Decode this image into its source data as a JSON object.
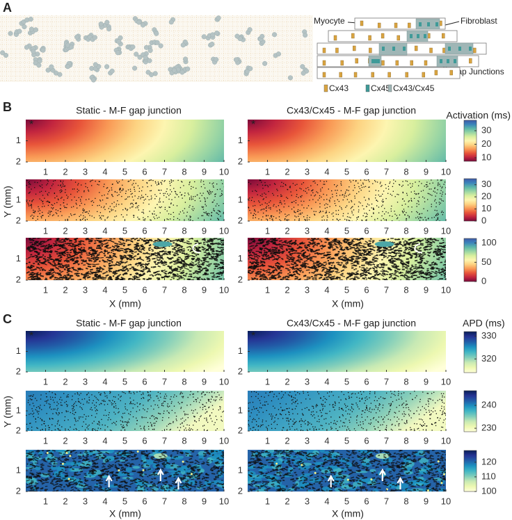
{
  "panel_a": {
    "label": "A",
    "myocyte": "Myocyte",
    "fibroblast": "Fibroblast",
    "gap_junctions": "Gap Junctions",
    "legend": [
      {
        "name": "Cx43",
        "color": "#d9a441"
      },
      {
        "name": "Cx45",
        "color": "#3f9a98"
      },
      {
        "name": "Cx43/Cx45",
        "color": "#9fb6b6"
      }
    ]
  },
  "panel_b": {
    "label": "B",
    "titles": [
      "Static - M-F gap junction",
      "Cx43/Cx45 - M-F gap junction"
    ],
    "colorbar_title": "Activation (ms)",
    "colorbars": [
      {
        "range": [
          7.4,
          37.7
        ],
        "ticks": [
          10,
          20,
          30
        ]
      },
      {
        "range": [
          0,
          35
        ],
        "ticks": [
          0,
          10,
          20,
          30
        ]
      },
      {
        "range": [
          0,
          112
        ],
        "ticks": [
          0,
          50,
          100
        ]
      }
    ]
  },
  "panel_c": {
    "label": "C",
    "titles": [
      "Static - M-F gap junction",
      "Cx43/Cx45 - M-F gap junction"
    ],
    "colorbar_title": "APD (ms)",
    "colorbars": [
      {
        "range": [
          314,
          332
        ],
        "ticks": [
          320,
          330
        ]
      },
      {
        "range": [
          228.5,
          246.4
        ],
        "ticks": [
          230,
          240
        ]
      },
      {
        "range": [
          100,
          128
        ],
        "ticks": [
          100,
          110,
          120
        ]
      }
    ]
  },
  "stim_marker": "*",
  "x_axis": {
    "label": "X  (mm)",
    "range": [
      0,
      10
    ],
    "ticks": [
      1,
      2,
      3,
      4,
      5,
      6,
      7,
      8,
      9,
      10
    ]
  },
  "y_axis": {
    "label": "Y (mm)",
    "range": [
      0,
      2
    ],
    "ticks": [
      1,
      2
    ]
  },
  "colormaps": {
    "activation": [
      "#7a0a3a",
      "#c2253f",
      "#e8553a",
      "#f99a56",
      "#fdd382",
      "#fdf5b0",
      "#d8ef9e",
      "#99d5a4",
      "#5cb6a9",
      "#3b84bb",
      "#3e5aa8"
    ],
    "apd": [
      "#ffffd9",
      "#edf8b1",
      "#c7e9b4",
      "#7fcdbb",
      "#41b6c4",
      "#1d91c0",
      "#225ea8",
      "#253494",
      "#081d58"
    ]
  }
}
